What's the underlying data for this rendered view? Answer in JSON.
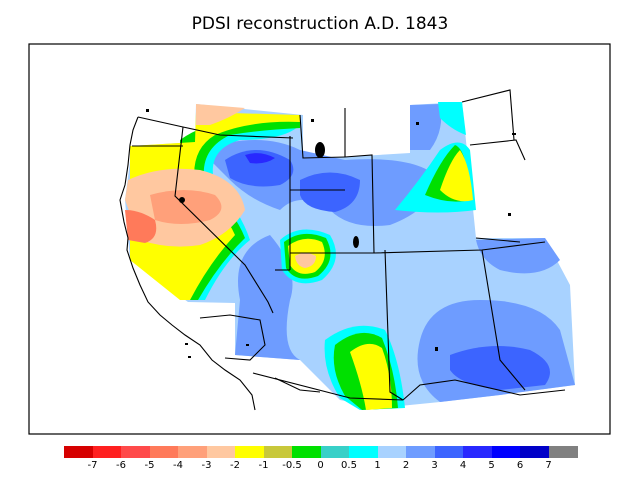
{
  "title": "PDSI reconstruction A.D. 1843",
  "colorbar": {
    "colors": [
      "#d60000",
      "#ff2020",
      "#ff4a4a",
      "#ff7a5a",
      "#ffa07a",
      "#ffc8a0",
      "#ffff00",
      "#c8c83a",
      "#00e000",
      "#38d0c8",
      "#00ffff",
      "#a8d2ff",
      "#6e9cff",
      "#3c64ff",
      "#2828ff",
      "#0000ff",
      "#0000c8",
      "#808080"
    ],
    "labels": [
      "-7",
      "-6",
      "-5",
      "-4",
      "-3",
      "-2",
      "-1",
      "-0.5",
      "0",
      "0.5",
      "1",
      "2",
      "3",
      "4",
      "5",
      "6",
      "7"
    ]
  },
  "map_colors": {
    "fill_light_blue": "#a8d2ff",
    "fill_mid_blue": "#6e9cff",
    "fill_deep_blue": "#3c64ff",
    "fill_dark_blue": "#2828ff",
    "fill_cyan": "#00ffff",
    "fill_green": "#00e000",
    "fill_yellow": "#ffff00",
    "fill_peach": "#ffc8a0",
    "fill_orange": "#ffa07a",
    "fill_red_orange": "#ff7a5a",
    "outline": "#000000"
  }
}
